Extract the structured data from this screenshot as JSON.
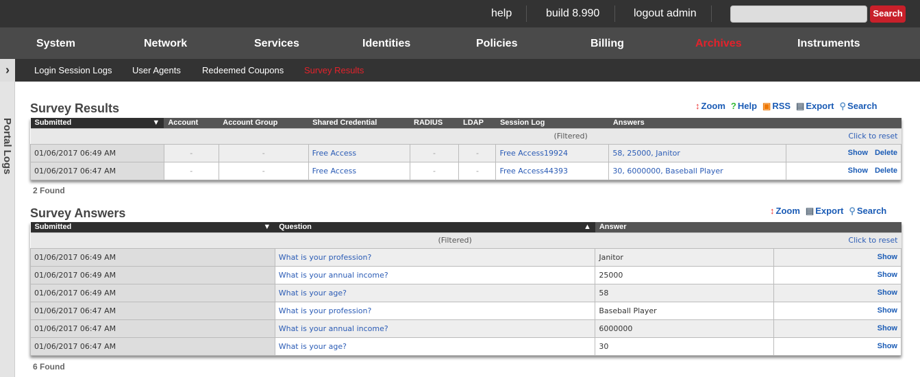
{
  "topbar": {
    "help": "help",
    "build": "build 8.990",
    "logout": "logout admin",
    "search_value": "",
    "search_button": "Search"
  },
  "nav": [
    {
      "label": "System"
    },
    {
      "label": "Network"
    },
    {
      "label": "Services"
    },
    {
      "label": "Identities"
    },
    {
      "label": "Policies"
    },
    {
      "label": "Billing"
    },
    {
      "label": "Archives",
      "active": true
    },
    {
      "label": "Instruments"
    }
  ],
  "subnav": [
    {
      "label": "Login Session Logs"
    },
    {
      "label": "User Agents"
    },
    {
      "label": "Redeemed Coupons"
    },
    {
      "label": "Survey Results",
      "active": true
    }
  ],
  "sidebar": {
    "label": "Portal Logs"
  },
  "survey_results": {
    "title": "Survey Results",
    "tools": {
      "zoom": "Zoom",
      "help": "Help",
      "rss": "RSS",
      "export": "Export",
      "search": "Search"
    },
    "columns": [
      "Submitted",
      "Account",
      "Account Group",
      "Shared Credential",
      "RADIUS",
      "LDAP",
      "Session Log",
      "Answers"
    ],
    "filtered": "(Filtered)",
    "reset": "Click to reset",
    "rows": [
      {
        "submitted": "01/06/2017 06:49 AM",
        "account": "-",
        "account_group": "-",
        "shared_credential": "Free Access",
        "radius": "-",
        "ldap": "-",
        "session_log": "Free Access19924",
        "answers": "58, 25000, Janitor",
        "show": "Show",
        "delete": "Delete"
      },
      {
        "submitted": "01/06/2017 06:47 AM",
        "account": "-",
        "account_group": "-",
        "shared_credential": "Free Access",
        "radius": "-",
        "ldap": "-",
        "session_log": "Free Access44393",
        "answers": "30, 6000000, Baseball Player",
        "show": "Show",
        "delete": "Delete"
      }
    ],
    "found": "2 Found"
  },
  "survey_answers": {
    "title": "Survey Answers",
    "tools": {
      "zoom": "Zoom",
      "export": "Export",
      "search": "Search"
    },
    "columns": [
      "Submitted",
      "Question",
      "Answer"
    ],
    "filtered": "(Filtered)",
    "reset": "Click to reset",
    "rows": [
      {
        "submitted": "01/06/2017 06:49 AM",
        "question": "What is your profession?",
        "answer": "Janitor",
        "show": "Show"
      },
      {
        "submitted": "01/06/2017 06:49 AM",
        "question": "What is your annual income?",
        "answer": "25000",
        "show": "Show"
      },
      {
        "submitted": "01/06/2017 06:49 AM",
        "question": "What is your age?",
        "answer": "58",
        "show": "Show"
      },
      {
        "submitted": "01/06/2017 06:47 AM",
        "question": "What is your profession?",
        "answer": "Baseball Player",
        "show": "Show"
      },
      {
        "submitted": "01/06/2017 06:47 AM",
        "question": "What is your annual income?",
        "answer": "6000000",
        "show": "Show"
      },
      {
        "submitted": "01/06/2017 06:47 AM",
        "question": "What is your age?",
        "answer": "30",
        "show": "Show"
      }
    ],
    "found": "6 Found"
  }
}
